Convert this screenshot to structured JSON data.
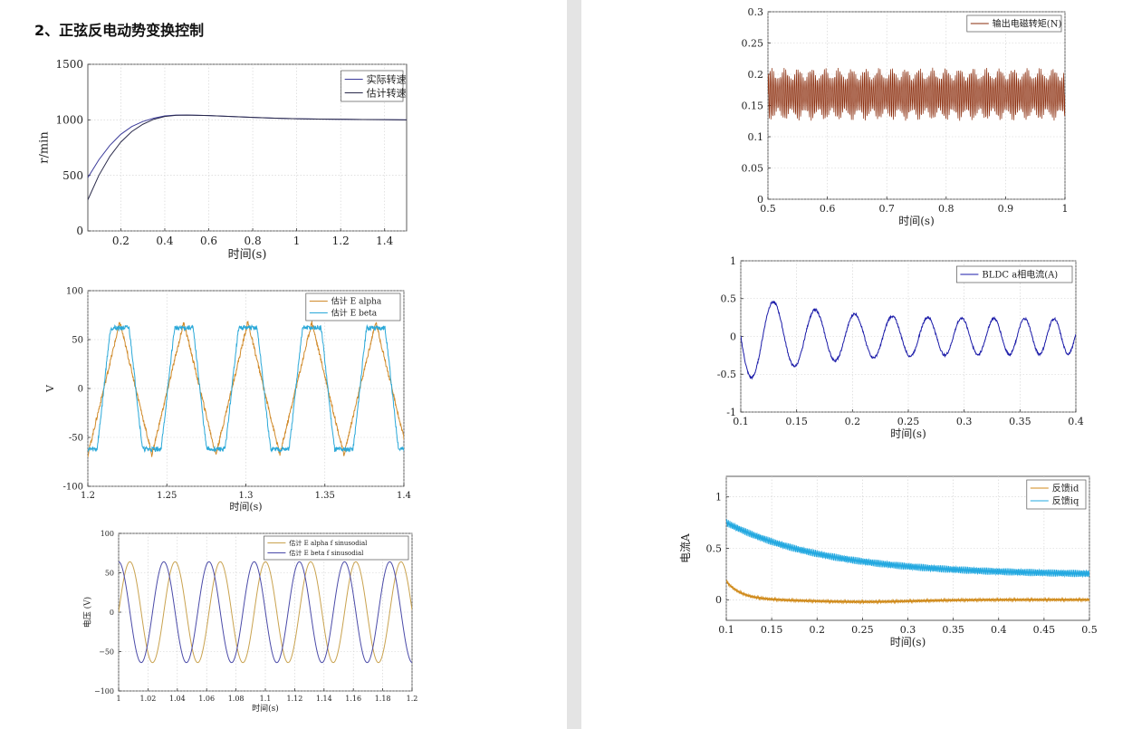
{
  "heading": "2、正弦反电动势变换控制",
  "chart_data": [
    {
      "id": "c1",
      "type": "line",
      "title": "",
      "xlabel": "时间(s)",
      "ylabel": "r/min",
      "xlim": [
        0.05,
        1.5
      ],
      "ylim": [
        0,
        1500
      ],
      "grid": true,
      "legend": "top-right",
      "xticks": [
        0.2,
        0.4,
        0.6,
        0.8,
        1,
        1.2,
        1.4
      ],
      "xtick_labels": [
        "0.2",
        "0.4",
        "0.6",
        "0.8",
        "1",
        "1.2",
        "1.4"
      ],
      "yticks": [
        0,
        500,
        1000,
        1500
      ],
      "ytick_labels": [
        "0",
        "500",
        "1000",
        "1500"
      ],
      "series": [
        {
          "name": "实际转速",
          "color": "#3b3b9a",
          "x": [
            0.05,
            0.1,
            0.15,
            0.2,
            0.25,
            0.3,
            0.35,
            0.4,
            0.45,
            0.5,
            0.6,
            0.7,
            0.8,
            0.9,
            1.0,
            1.1,
            1.2,
            1.3,
            1.4,
            1.5
          ],
          "y": [
            480,
            640,
            770,
            870,
            940,
            985,
            1015,
            1035,
            1042,
            1043,
            1038,
            1030,
            1022,
            1015,
            1010,
            1007,
            1005,
            1003,
            1002,
            1000
          ]
        },
        {
          "name": "估计转速",
          "color": "#2a2a4a",
          "x": [
            0.05,
            0.1,
            0.15,
            0.2,
            0.25,
            0.3,
            0.35,
            0.4,
            0.45,
            0.5,
            0.6,
            0.7,
            0.8,
            0.9,
            1.0,
            1.1,
            1.2,
            1.3,
            1.4,
            1.5
          ],
          "y": [
            280,
            500,
            670,
            800,
            895,
            960,
            1005,
            1030,
            1040,
            1042,
            1038,
            1030,
            1022,
            1015,
            1010,
            1007,
            1005,
            1003,
            1002,
            1000
          ]
        }
      ]
    },
    {
      "id": "c2",
      "type": "line",
      "title": "",
      "xlabel": "时间(s)",
      "ylabel": "V",
      "xlim": [
        1.2,
        1.4
      ],
      "ylim": [
        -100,
        100
      ],
      "grid": true,
      "legend": "top-right",
      "xticks": [
        1.2,
        1.25,
        1.3,
        1.35,
        1.4
      ],
      "xtick_labels": [
        "1.2",
        "1.25",
        "1.3",
        "1.35",
        "1.4"
      ],
      "yticks": [
        -100,
        -50,
        0,
        50,
        100
      ],
      "ytick_labels": [
        "-100",
        "-50",
        "0",
        "50",
        "100"
      ],
      "series": [
        {
          "name": "估计 E alpha",
          "color": "#d08a2a",
          "waveform": "triangle",
          "amplitude": 68,
          "period": 0.0405,
          "phase": 0.0,
          "noise": 5
        },
        {
          "name": "估计 E beta",
          "color": "#2aa8d8",
          "waveform": "trapezoid",
          "amplitude": 62,
          "period": 0.0405,
          "phase": -1.5708,
          "noise": 5
        }
      ]
    },
    {
      "id": "c3",
      "type": "line",
      "title": "",
      "xlabel": "时间(s)",
      "ylabel": "电压 (V)",
      "xlim": [
        1,
        1.2
      ],
      "ylim": [
        -100,
        100
      ],
      "grid": true,
      "legend": "top-right",
      "xticks": [
        1,
        1.02,
        1.04,
        1.06,
        1.08,
        1.1,
        1.12,
        1.14,
        1.16,
        1.18,
        1.2
      ],
      "xtick_labels": [
        "1",
        "1.02",
        "1.04",
        "1.06",
        "1.08",
        "1.1",
        "1.12",
        "1.14",
        "1.16",
        "1.18",
        "1.2"
      ],
      "yticks": [
        -100,
        -50,
        0,
        50,
        100
      ],
      "ytick_labels": [
        "−100",
        "−50",
        "0",
        "50",
        "100"
      ],
      "series": [
        {
          "name": "估计 E alpha f sinusodial",
          "color": "#c9a24e",
          "waveform": "sine",
          "amplitude": 64,
          "period": 0.0308,
          "phase": 0.0
        },
        {
          "name": "估计 E beta f sinusodial",
          "color": "#4a4aa8",
          "waveform": "sine",
          "amplitude": 64,
          "period": 0.0308,
          "phase": 1.5708
        }
      ]
    },
    {
      "id": "c4",
      "type": "line",
      "title": "",
      "xlabel": "时间(s)",
      "ylabel": "",
      "xlim": [
        0.5,
        1
      ],
      "ylim": [
        0,
        0.3
      ],
      "grid": true,
      "legend": "top-right",
      "xticks": [
        0.5,
        0.6,
        0.7,
        0.8,
        0.9,
        1
      ],
      "xtick_labels": [
        "0.5",
        "0.6",
        "0.7",
        "0.8",
        "0.9",
        "1"
      ],
      "yticks": [
        0,
        0.05,
        0.1,
        0.15,
        0.2,
        0.25,
        0.3
      ],
      "ytick_labels": [
        "0",
        "0.05",
        "0.1",
        "0.15",
        "0.2",
        "0.25",
        "0.3"
      ],
      "series": [
        {
          "name": "输出电磁转矩(N)",
          "color": "#8a2b0a",
          "waveform": "ripple",
          "center": 0.168,
          "ripple_min": 0.125,
          "ripple_max": 0.21,
          "cycles": 170
        }
      ]
    },
    {
      "id": "c5",
      "type": "line",
      "title": "",
      "xlabel": "时间(s)",
      "ylabel": "",
      "xlim": [
        0.1,
        0.4
      ],
      "ylim": [
        -1,
        1
      ],
      "grid": true,
      "legend": "top-right",
      "xticks": [
        0.1,
        0.15,
        0.2,
        0.25,
        0.3,
        0.35,
        0.4
      ],
      "xtick_labels": [
        "0.1",
        "0.15",
        "0.2",
        "0.25",
        "0.3",
        "0.35",
        "0.4"
      ],
      "yticks": [
        -1,
        -0.5,
        0,
        0.5,
        1
      ],
      "ytick_labels": [
        "-1",
        "-0.5",
        "0",
        "0.5",
        "1"
      ],
      "series": [
        {
          "name": "BLDC a相电流(A)",
          "color": "#1a1aa8",
          "waveform": "decaying_sine",
          "start_amplitude": 0.6,
          "end_amplitude": 0.23,
          "period_start": 0.04,
          "period_end": 0.0315,
          "phase": 3.3
        }
      ]
    },
    {
      "id": "c6",
      "type": "line",
      "title": "",
      "xlabel": "时间(s)",
      "ylabel": "电流A",
      "xlim": [
        0.1,
        0.5
      ],
      "ylim": [
        -0.2,
        1.2
      ],
      "grid": true,
      "legend": "top-right",
      "xticks": [
        0.1,
        0.15,
        0.2,
        0.25,
        0.3,
        0.35,
        0.4,
        0.45,
        0.5
      ],
      "xtick_labels": [
        "0.1",
        "0.15",
        "0.2",
        "0.25",
        "0.3",
        "0.35",
        "0.4",
        "0.45",
        "0.5"
      ],
      "yticks": [
        0,
        0.5,
        1
      ],
      "ytick_labels": [
        "0",
        "0.5",
        "1"
      ],
      "series": [
        {
          "name": "反馈id",
          "color": "#d08a1a",
          "waveform": "settling",
          "start": 0.18,
          "end": 0.0,
          "dip": -0.03,
          "ripple": 0.012
        },
        {
          "name": "反馈iq",
          "color": "#22a8e0",
          "waveform": "decay",
          "start": 0.75,
          "end": 0.24,
          "ripple": 0.035
        }
      ]
    }
  ]
}
